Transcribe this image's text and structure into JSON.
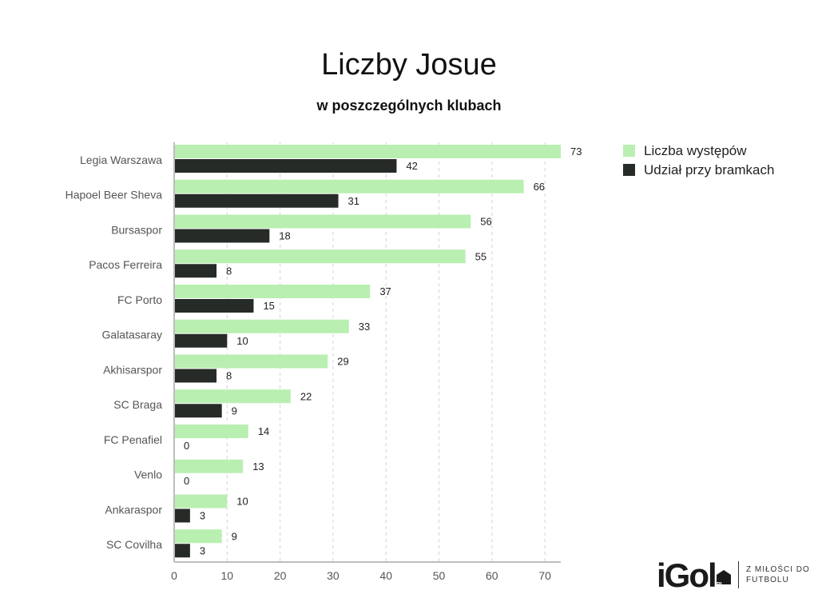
{
  "chart_data": {
    "type": "bar",
    "orientation": "horizontal",
    "title": "Liczby Josue",
    "subtitle": "w poszczególnych klubach",
    "categories": [
      "Legia Warszawa",
      "Hapoel Beer Sheva",
      "Bursaspor",
      "Pacos Ferreira",
      "FC Porto",
      "Galatasaray",
      "Akhisarspor",
      "SC Braga",
      "FC Penafiel",
      "Venlo",
      "Ankaraspor",
      "SC Covilha"
    ],
    "series": [
      {
        "name": "Liczba występów",
        "color": "#b9efb1",
        "values": [
          73,
          66,
          56,
          55,
          37,
          33,
          29,
          22,
          14,
          13,
          10,
          9
        ]
      },
      {
        "name": "Udział przy bramkach",
        "color": "#262b27",
        "values": [
          42,
          31,
          18,
          8,
          15,
          10,
          8,
          9,
          0,
          0,
          3,
          3
        ]
      }
    ],
    "xlim": [
      0,
      73
    ],
    "xticks": [
      0,
      10,
      20,
      30,
      40,
      50,
      60,
      70
    ],
    "grid": true,
    "legend_position": "top-right"
  },
  "legend": {
    "items": [
      {
        "label": "Liczba występów",
        "color": "#b9efb1"
      },
      {
        "label": "Udział przy bramkach",
        "color": "#262b27"
      }
    ]
  },
  "logo": {
    "wordmark": "iGol",
    "badge_text": "PL",
    "tagline": "Z MIŁOŚCI DO FUTBOLU"
  }
}
